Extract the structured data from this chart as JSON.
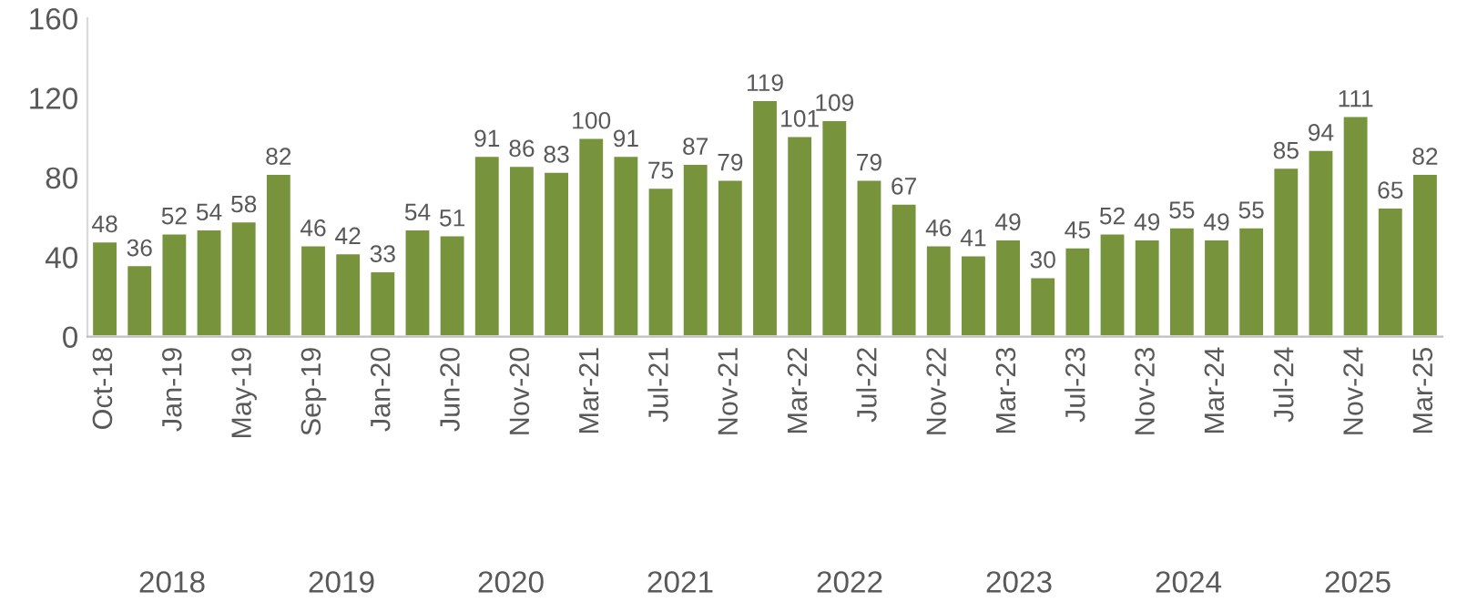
{
  "chart_data": {
    "type": "bar",
    "categories": [
      "Oct-18",
      null,
      "Jan-19",
      null,
      "May-19",
      null,
      "Sep-19",
      null,
      "Jan-20",
      null,
      "Jun-20",
      null,
      "Nov-20",
      null,
      "Mar-21",
      null,
      "Jul-21",
      null,
      "Nov-21",
      null,
      "Mar-22",
      null,
      "Jul-22",
      null,
      "Nov-22",
      null,
      "Mar-23",
      null,
      "Jul-23",
      null,
      "Nov-23",
      null,
      "Mar-24",
      null,
      "Jul-24",
      null,
      "Nov-24",
      null,
      "Mar-25"
    ],
    "values": [
      48,
      36,
      52,
      54,
      58,
      82,
      46,
      42,
      33,
      54,
      51,
      91,
      86,
      83,
      100,
      91,
      75,
      87,
      79,
      119,
      101,
      109,
      79,
      67,
      46,
      41,
      49,
      30,
      45,
      52,
      49,
      55,
      49,
      55,
      85,
      94,
      111,
      65,
      82
    ],
    "color": "#77933c",
    "ylim": [
      0,
      160
    ],
    "yticks": [
      0,
      40,
      80,
      120,
      160
    ],
    "grid": false,
    "legend": false,
    "data_labels": true,
    "annotations": [
      "2018",
      "2019",
      "2020",
      "2021",
      "2022",
      "2023",
      "2024",
      "2025"
    ]
  }
}
